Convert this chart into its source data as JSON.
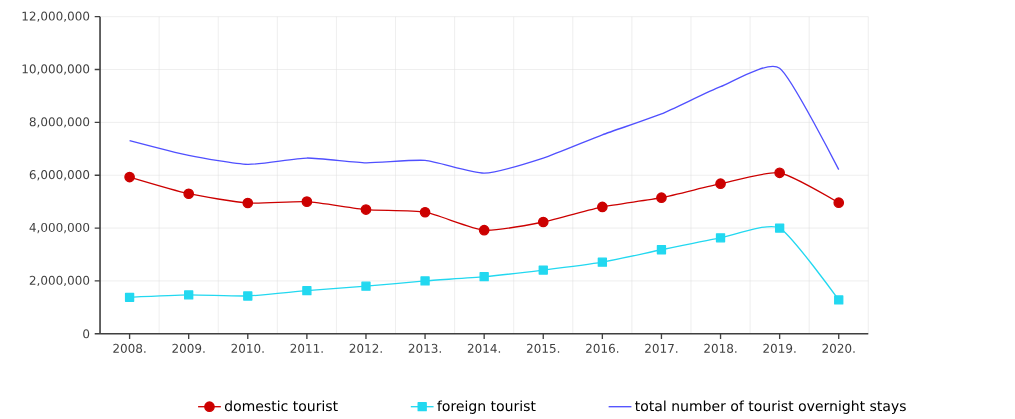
{
  "chart_data": {
    "type": "line",
    "categories": [
      "2008.",
      "2009.",
      "2010.",
      "2011.",
      "2012.",
      "2013.",
      "2014.",
      "2015.",
      "2016.",
      "2017.",
      "2018.",
      "2019.",
      "2020."
    ],
    "series": [
      {
        "name": "domestic tourist",
        "color": "#cc0000",
        "marker": "circle",
        "values": [
          5930000,
          5300000,
          4950000,
          5000000,
          4700000,
          4600000,
          3920000,
          4230000,
          4800000,
          5150000,
          5680000,
          6090000,
          4960000
        ]
      },
      {
        "name": "foreign tourist",
        "color": "#22d8f0",
        "marker": "square",
        "values": [
          1380000,
          1470000,
          1430000,
          1630000,
          1800000,
          2000000,
          2160000,
          2410000,
          2710000,
          3180000,
          3630000,
          4000000,
          1280000
        ]
      },
      {
        "name": "total number of tourist overnight stays",
        "color": "#5050ff",
        "marker": "none",
        "values": [
          7310000,
          6750000,
          6410000,
          6650000,
          6470000,
          6560000,
          6080000,
          6650000,
          7530000,
          8320000,
          9350000,
          10050000,
          6210000
        ]
      }
    ],
    "ylim": [
      0,
      12000000
    ],
    "yticks": [
      {
        "value": 0,
        "label": "0"
      },
      {
        "value": 2000000,
        "label": "2,000,000"
      },
      {
        "value": 4000000,
        "label": "4,000,000"
      },
      {
        "value": 6000000,
        "label": "6,000,000"
      },
      {
        "value": 8000000,
        "label": "8,000,000"
      },
      {
        "value": 10000000,
        "label": "10,000,000"
      },
      {
        "value": 12000000,
        "label": "12,000,000"
      }
    ],
    "grid": true,
    "legend": "bottom"
  }
}
